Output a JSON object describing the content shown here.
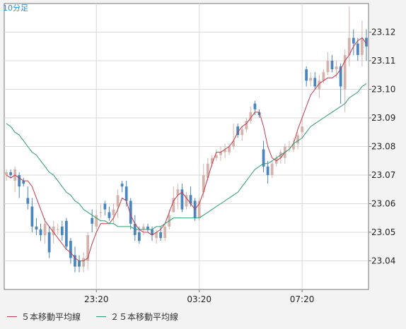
{
  "timeframe_label": "10分足",
  "legend": {
    "ma5": "５本移動平均線",
    "ma25": "２５本移動平均線"
  },
  "colors": {
    "up_candle": "#d4b3ad",
    "down_candle": "#4a86bd",
    "ma5": "#c03a4a",
    "ma25": "#2e9a72",
    "grid": "#d9d9d9",
    "axis": "#777777",
    "background": "#ffffff"
  },
  "chart_data": {
    "type": "candlestick",
    "title": "",
    "xlabel": "",
    "ylabel": "",
    "ylim": [
      23.03,
      23.13
    ],
    "y_ticks": [
      "23.04",
      "23.05",
      "23.06",
      "23.07",
      "23.08",
      "23.09",
      "23.10",
      "23.11",
      "23.12"
    ],
    "x_ticks": [
      "23:20",
      "03:20",
      "07:20"
    ],
    "x_tick_index": [
      21,
      45,
      69
    ],
    "series": [
      {
        "name": "５本移動平均線",
        "values": [
          23.07,
          23.069,
          23.07,
          23.069,
          23.068,
          23.068,
          23.066,
          23.062,
          23.058,
          23.054,
          23.052,
          23.05,
          23.048,
          23.046,
          23.044,
          23.043,
          23.041,
          23.04,
          23.04,
          23.041,
          23.046,
          23.05,
          23.053,
          23.053,
          23.053,
          23.055,
          23.058,
          23.062,
          23.061,
          23.056,
          23.053,
          23.051,
          23.05,
          23.05,
          23.049,
          23.05,
          23.051,
          23.053,
          23.057,
          23.061,
          23.063,
          23.064,
          23.062,
          23.06,
          23.058,
          23.06,
          23.064,
          23.069,
          23.074,
          23.078,
          23.078,
          23.079,
          23.08,
          23.082,
          23.085,
          23.087,
          23.088,
          23.09,
          23.092,
          23.092,
          23.087,
          23.08,
          23.076,
          23.075,
          23.076,
          23.078,
          23.079,
          23.081,
          23.086,
          23.09,
          23.094,
          23.098,
          23.1,
          23.102,
          23.103,
          23.104,
          23.104,
          23.105,
          23.107,
          23.11,
          23.112,
          23.115,
          23.117,
          23.118,
          23.116
        ]
      },
      {
        "name": "２５本移動平均線",
        "values": [
          23.088,
          23.087,
          23.085,
          23.084,
          23.082,
          23.08,
          23.078,
          23.077,
          23.075,
          23.073,
          23.071,
          23.07,
          23.068,
          23.066,
          23.064,
          23.063,
          23.061,
          23.06,
          23.058,
          23.057,
          23.056,
          23.055,
          23.054,
          23.054,
          23.053,
          23.053,
          23.052,
          23.052,
          23.052,
          23.052,
          23.051,
          23.051,
          23.051,
          23.051,
          23.051,
          23.052,
          23.052,
          23.053,
          23.054,
          23.055,
          23.055,
          23.055,
          23.055,
          23.055,
          23.055,
          23.055,
          23.056,
          23.057,
          23.058,
          23.059,
          23.06,
          23.061,
          23.062,
          23.063,
          23.064,
          23.066,
          23.068,
          23.07,
          23.072,
          23.073,
          23.074,
          23.074,
          23.075,
          23.076,
          23.077,
          23.078,
          23.079,
          23.081,
          23.082,
          23.083,
          23.085,
          23.087,
          23.088,
          23.089,
          23.09,
          23.091,
          23.092,
          23.093,
          23.094,
          23.095,
          23.097,
          23.098,
          23.099,
          23.101,
          23.102
        ]
      }
    ],
    "candles": [
      [
        23.07,
        23.071,
        23.072,
        23.068
      ],
      [
        23.071,
        23.07,
        23.072,
        23.069
      ],
      [
        23.068,
        23.072,
        23.073,
        23.064
      ],
      [
        23.07,
        23.066,
        23.071,
        23.062
      ],
      [
        23.068,
        23.067,
        23.069,
        23.066
      ],
      [
        23.062,
        23.06,
        23.066,
        23.058
      ],
      [
        23.059,
        23.052,
        23.062,
        23.05
      ],
      [
        23.052,
        23.051,
        23.055,
        23.049
      ],
      [
        23.051,
        23.049,
        23.053,
        23.047
      ],
      [
        23.049,
        23.053,
        23.055,
        23.046
      ],
      [
        23.05,
        23.043,
        23.052,
        23.041
      ],
      [
        23.049,
        23.052,
        23.054,
        23.046
      ],
      [
        23.051,
        23.051,
        23.053,
        23.049
      ],
      [
        23.052,
        23.049,
        23.054,
        23.047
      ],
      [
        23.054,
        23.045,
        23.055,
        23.044
      ],
      [
        23.047,
        23.041,
        23.048,
        23.039
      ],
      [
        23.042,
        23.038,
        23.045,
        23.036
      ],
      [
        23.04,
        23.038,
        23.042,
        23.036
      ],
      [
        23.038,
        23.041,
        23.043,
        23.036
      ],
      [
        23.04,
        23.049,
        23.05,
        23.037
      ],
      [
        23.055,
        23.053,
        23.058,
        23.05
      ],
      [
        23.052,
        23.056,
        23.058,
        23.051
      ],
      [
        23.057,
        23.057,
        23.06,
        23.055
      ],
      [
        23.06,
        23.058,
        23.061,
        23.056
      ],
      [
        23.057,
        23.055,
        23.059,
        23.054
      ],
      [
        23.056,
        23.058,
        23.06,
        23.053
      ],
      [
        23.059,
        23.063,
        23.065,
        23.055
      ],
      [
        23.067,
        23.066,
        23.068,
        23.064
      ],
      [
        23.066,
        23.061,
        23.068,
        23.059
      ],
      [
        23.061,
        23.053,
        23.062,
        23.051
      ],
      [
        23.053,
        23.049,
        23.056,
        23.047
      ],
      [
        23.05,
        23.047,
        23.052,
        23.046
      ],
      [
        23.051,
        23.052,
        23.053,
        23.049
      ],
      [
        23.052,
        23.051,
        23.053,
        23.05
      ],
      [
        23.051,
        23.049,
        23.052,
        23.047
      ],
      [
        23.048,
        23.05,
        23.051,
        23.046
      ],
      [
        23.05,
        23.048,
        23.052,
        23.047
      ],
      [
        23.048,
        23.052,
        23.053,
        23.047
      ],
      [
        23.052,
        23.056,
        23.058,
        23.051
      ],
      [
        23.057,
        23.062,
        23.066,
        23.057
      ],
      [
        23.063,
        23.065,
        23.067,
        23.058
      ],
      [
        23.065,
        23.058,
        23.067,
        23.057
      ],
      [
        23.059,
        23.063,
        23.064,
        23.058
      ],
      [
        23.063,
        23.06,
        23.066,
        23.059
      ],
      [
        23.061,
        23.055,
        23.062,
        23.054
      ],
      [
        23.055,
        23.061,
        23.062,
        23.054
      ],
      [
        23.064,
        23.07,
        23.074,
        23.062
      ],
      [
        23.069,
        23.074,
        23.076,
        23.068
      ],
      [
        23.074,
        23.076,
        23.077,
        23.073
      ],
      [
        23.076,
        23.077,
        23.079,
        23.075
      ],
      [
        23.077,
        23.078,
        23.08,
        23.075
      ],
      [
        23.078,
        23.079,
        23.081,
        23.076
      ],
      [
        23.078,
        23.08,
        23.081,
        23.077
      ],
      [
        23.08,
        23.082,
        23.088,
        23.079
      ],
      [
        23.087,
        23.084,
        23.088,
        23.083
      ],
      [
        23.084,
        23.086,
        23.087,
        23.082
      ],
      [
        23.086,
        23.089,
        23.09,
        23.085
      ],
      [
        23.089,
        23.092,
        23.094,
        23.088
      ],
      [
        23.095,
        23.093,
        23.096,
        23.091
      ],
      [
        23.092,
        23.091,
        23.093,
        23.09
      ],
      [
        23.079,
        23.073,
        23.082,
        23.071
      ],
      [
        23.073,
        23.07,
        23.075,
        23.067
      ],
      [
        23.07,
        23.074,
        23.075,
        23.069
      ],
      [
        23.074,
        23.076,
        23.077,
        23.073
      ],
      [
        23.076,
        23.078,
        23.079,
        23.074
      ],
      [
        23.076,
        23.08,
        23.081,
        23.074
      ],
      [
        23.08,
        23.08,
        23.082,
        23.078
      ],
      [
        23.079,
        23.081,
        23.083,
        23.078
      ],
      [
        23.081,
        23.084,
        23.085,
        23.079
      ],
      [
        23.085,
        23.087,
        23.09,
        23.083
      ],
      [
        23.107,
        23.103,
        23.108,
        23.101
      ],
      [
        23.103,
        23.104,
        23.106,
        23.101
      ],
      [
        23.104,
        23.101,
        23.106,
        23.1
      ],
      [
        23.1,
        23.103,
        23.105,
        23.097
      ],
      [
        23.103,
        23.106,
        23.107,
        23.102
      ],
      [
        23.106,
        23.11,
        23.113,
        23.105
      ],
      [
        23.11,
        23.107,
        23.112,
        23.106
      ],
      [
        23.107,
        23.108,
        23.11,
        23.104
      ],
      [
        23.108,
        23.101,
        23.109,
        23.095
      ],
      [
        23.1,
        23.112,
        23.114,
        23.092
      ],
      [
        23.112,
        23.118,
        23.129,
        23.108
      ],
      [
        23.118,
        23.116,
        23.121,
        23.112
      ],
      [
        23.116,
        23.112,
        23.118,
        23.11
      ],
      [
        23.112,
        23.118,
        23.124,
        23.108
      ],
      [
        23.118,
        23.115,
        23.121,
        23.11
      ]
    ]
  }
}
